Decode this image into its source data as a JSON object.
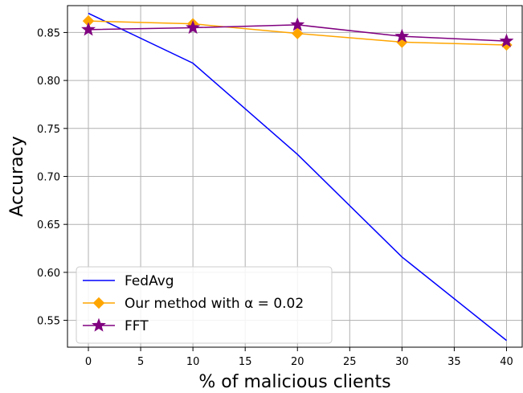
{
  "chart_data": {
    "type": "line",
    "title": "",
    "xlabel": "% of malicious clients",
    "ylabel": "Accuracy",
    "x": [
      0,
      10,
      20,
      30,
      40
    ],
    "xlim": [
      -2,
      41.5
    ],
    "ylim": [
      0.522,
      0.878
    ],
    "xticks": [
      0,
      5,
      10,
      15,
      20,
      25,
      30,
      35,
      40
    ],
    "yticks": [
      0.55,
      0.6,
      0.65,
      0.7,
      0.75,
      0.8,
      0.85
    ],
    "xtick_labels": [
      "0",
      "5",
      "10",
      "15",
      "20",
      "25",
      "30",
      "35",
      "40"
    ],
    "ytick_labels": [
      "0.55",
      "0.60",
      "0.65",
      "0.70",
      "0.75",
      "0.80",
      "0.85"
    ],
    "grid": true,
    "legend_position": "lower-left",
    "series": [
      {
        "name": "FedAvg",
        "values": [
          0.87,
          0.818,
          0.723,
          0.616,
          0.529
        ],
        "color": "#0000ff",
        "marker": "none"
      },
      {
        "name": "Our method with α = 0.02",
        "values": [
          0.862,
          0.859,
          0.849,
          0.84,
          0.837
        ],
        "color": "#ffa500",
        "marker": "diamond"
      },
      {
        "name": "FFT",
        "values": [
          0.853,
          0.855,
          0.858,
          0.846,
          0.841
        ],
        "color": "#800080",
        "marker": "star"
      }
    ]
  }
}
